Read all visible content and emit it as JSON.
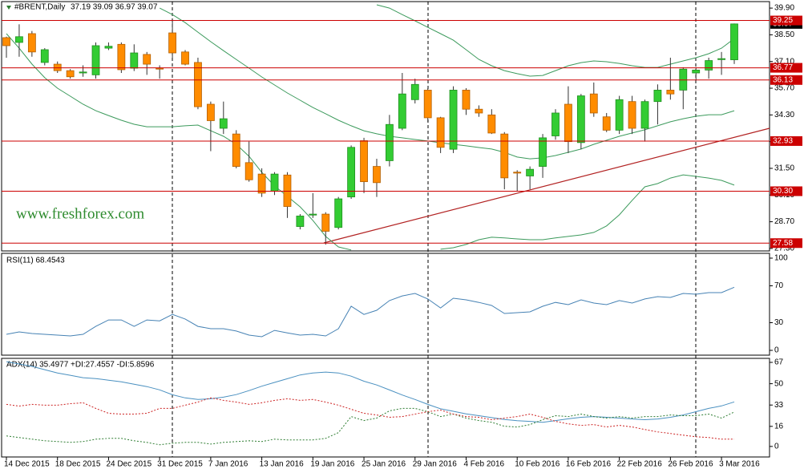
{
  "chart_data": [
    {
      "type": "candlestick",
      "title": "#BRENT,Daily",
      "subtitle": "37.19 39.09 36.97 39.07",
      "annotation": "www.freshforex.com",
      "categories": [
        "14 Dec 2015",
        null,
        null,
        null,
        "18 Dec 2015",
        null,
        null,
        null,
        "24 Dec 2015",
        null,
        null,
        null,
        "31 Dec 2015",
        null,
        null,
        null,
        "7 Jan 2016",
        null,
        null,
        null,
        "13 Jan 2016",
        null,
        null,
        null,
        "19 Jan 2016",
        null,
        null,
        null,
        "25 Jan 2016",
        null,
        null,
        null,
        "29 Jan 2016",
        null,
        null,
        null,
        "4 Feb 2016",
        null,
        null,
        null,
        "10 Feb 2016",
        null,
        null,
        null,
        "16 Feb 2016",
        null,
        null,
        null,
        "22 Feb 2016",
        null,
        null,
        null,
        "26 Feb 2016",
        null,
        null,
        null,
        "3 Mar 2016",
        null
      ],
      "open": [
        38.35,
        38.1,
        38.56,
        37.05,
        36.96,
        36.62,
        36.5,
        36.4,
        37.8,
        38.0,
        36.75,
        37.47,
        36.75,
        38.6,
        37.6,
        37.05,
        34.86,
        33.6,
        33.3,
        31.8,
        31.2,
        30.3,
        31.15,
        28.45,
        29.05,
        29.1,
        28.4,
        30.0,
        32.95,
        31.6,
        31.9,
        33.6,
        35.1,
        35.6,
        34.15,
        32.5,
        35.6,
        34.6,
        34.3,
        33.3,
        31.3,
        31.1,
        31.6,
        33.2,
        34.86,
        32.85,
        35.4,
        34.2,
        33.5,
        35.0,
        33.6,
        35.0,
        35.6,
        35.6,
        36.5,
        36.65,
        37.2,
        37.19
      ],
      "high": [
        38.4,
        39.05,
        38.7,
        37.8,
        37.1,
        36.7,
        36.9,
        38.1,
        38.1,
        38.1,
        38.0,
        37.6,
        36.9,
        39.2,
        37.7,
        37.3,
        35.0,
        35.0,
        33.5,
        32.9,
        31.5,
        31.3,
        31.3,
        29.1,
        30.2,
        29.2,
        30.0,
        32.7,
        33.1,
        32.0,
        34.3,
        36.5,
        36.2,
        35.7,
        34.2,
        35.8,
        35.7,
        34.8,
        34.6,
        33.4,
        31.4,
        31.6,
        33.3,
        34.6,
        35.8,
        35.4,
        36.0,
        34.4,
        35.3,
        35.3,
        35.1,
        35.9,
        37.3,
        36.8,
        36.8,
        37.3,
        37.6,
        39.09
      ],
      "low": [
        37.3,
        37.35,
        37.35,
        36.9,
        36.5,
        36.2,
        36.3,
        36.2,
        37.7,
        36.5,
        36.6,
        36.4,
        36.2,
        37.3,
        36.9,
        34.6,
        32.4,
        33.3,
        31.5,
        30.8,
        30.0,
        30.1,
        28.9,
        28.3,
        28.9,
        27.5,
        28.3,
        29.9,
        30.2,
        30.0,
        31.6,
        33.5,
        34.9,
        33.9,
        32.3,
        32.3,
        34.3,
        34.2,
        33.3,
        30.4,
        30.3,
        30.4,
        31.0,
        33.0,
        32.3,
        32.5,
        34.2,
        33.4,
        33.3,
        33.3,
        32.9,
        33.8,
        35.1,
        34.6,
        36.1,
        36.2,
        36.4,
        36.97
      ],
      "close": [
        37.93,
        38.4,
        37.6,
        37.72,
        36.62,
        36.3,
        36.55,
        37.93,
        37.9,
        36.67,
        37.55,
        36.96,
        36.7,
        37.55,
        36.96,
        34.73,
        34.0,
        34.1,
        31.6,
        30.9,
        30.2,
        31.2,
        29.5,
        29.0,
        29.1,
        28.2,
        29.9,
        32.6,
        30.8,
        30.75,
        33.8,
        35.4,
        35.9,
        34.15,
        32.6,
        35.6,
        34.6,
        34.4,
        33.35,
        31.0,
        31.25,
        31.45,
        33.1,
        34.4,
        32.9,
        35.3,
        34.4,
        33.5,
        35.1,
        33.6,
        35.0,
        35.6,
        35.4,
        36.7,
        36.65,
        37.15,
        37.25,
        39.07
      ],
      "up_color": "#33cc33",
      "down_color": "#ff8c00",
      "overlays": [
        {
          "color": "#3c9a5c",
          "values": [
            null,
            null,
            null,
            null,
            null,
            null,
            null,
            null,
            null,
            null,
            null,
            null,
            39.9,
            39.56,
            39.14,
            38.64,
            38.14,
            37.67,
            37.21,
            36.75,
            36.29,
            35.87,
            35.45,
            35.07,
            34.69,
            34.36,
            34.02,
            33.73,
            33.47,
            33.31,
            33.18,
            33.1,
            33.01,
            32.93,
            32.84,
            32.76,
            32.68,
            32.59,
            32.51,
            32.34,
            32.09,
            32.0,
            32.05,
            32.17,
            32.34,
            32.51,
            32.76,
            32.97,
            33.18,
            33.35,
            33.52,
            33.73,
            33.94,
            34.1,
            34.23,
            34.31,
            34.31,
            34.52
          ]
        },
        {
          "color": "#3c9a5c",
          "values": [
            38.56,
            37.8,
            36.96,
            36.25,
            35.7,
            35.28,
            34.86,
            34.52,
            34.27,
            34.02,
            33.81,
            33.68,
            33.68,
            33.68,
            33.73,
            33.77,
            33.47,
            33.18,
            32.76,
            32.13,
            31.29,
            30.58,
            30.03,
            29.48,
            28.77,
            27.93,
            27.38,
            27.22,
            null,
            null,
            null,
            null,
            null,
            null,
            27.26,
            27.34,
            27.51,
            27.76,
            27.89,
            27.85,
            27.8,
            27.76,
            27.76,
            27.85,
            27.93,
            28.01,
            28.14,
            28.48,
            29.06,
            29.82,
            30.53,
            30.7,
            30.99,
            31.16,
            31.08,
            30.99,
            30.87,
            30.62
          ]
        },
        {
          "color": "#3c9a5c",
          "values": [
            null,
            null,
            null,
            null,
            null,
            null,
            null,
            null,
            null,
            null,
            null,
            null,
            null,
            null,
            null,
            null,
            null,
            null,
            null,
            null,
            null,
            null,
            null,
            null,
            null,
            null,
            null,
            null,
            null,
            40.07,
            39.9,
            39.56,
            39.23,
            38.89,
            38.56,
            38.22,
            37.72,
            37.21,
            36.88,
            36.62,
            36.46,
            36.33,
            36.37,
            36.62,
            36.88,
            37.04,
            37.13,
            37.09,
            37.0,
            36.88,
            36.79,
            36.79,
            36.96,
            37.13,
            37.3,
            37.51,
            37.8,
            38.3
          ]
        }
      ],
      "hlines": [
        39.25,
        36.77,
        36.13,
        32.93,
        {
          "value": 30.3,
          "label": "30.30"
        },
        27.58
      ],
      "hline_color": "#cc0000",
      "last_price": 39.07,
      "ylim": [
        27.17,
        40.24
      ],
      "yticks": [
        {
          "value": 39.9,
          "label": "39.90"
        },
        {
          "value": 38.5,
          "label": "38.50"
        },
        {
          "value": 37.1,
          "label": "37.10"
        },
        {
          "value": 35.7,
          "label": "35.70"
        },
        {
          "value": 34.3,
          "label": "34.30"
        },
        {
          "value": 32.9,
          "label": "32.90"
        },
        {
          "value": 31.5,
          "label": "31.50"
        },
        {
          "value": 30.1,
          "label": "30.10"
        },
        {
          "value": 28.7,
          "label": "28.70"
        },
        {
          "value": 27.3,
          "label": "27.30"
        }
      ]
    },
    {
      "type": "line",
      "title": "RSI(11) 68.4543",
      "color": "#4682b4",
      "values": [
        17.4,
        20,
        18.3,
        17.4,
        16.5,
        15.7,
        17.4,
        26,
        33,
        33,
        26,
        33,
        32,
        39,
        34,
        26,
        23.5,
        23.5,
        21,
        16.5,
        14.8,
        21.7,
        19,
        16.5,
        17.4,
        15.7,
        23.5,
        47.8,
        39,
        43.5,
        54,
        59,
        61.7,
        55.7,
        46,
        56.5,
        54.8,
        52,
        48.7,
        40,
        40.9,
        41.7,
        47.8,
        52,
        49.6,
        54.8,
        51.3,
        49.6,
        54,
        51.3,
        55.7,
        58.3,
        57.4,
        61.7,
        60.9,
        62.6,
        62.6,
        68.4543
      ],
      "ylim": [
        -5.2,
        105.2
      ],
      "yticks": [
        100,
        70,
        30,
        0
      ]
    },
    {
      "type": "line",
      "title": "ADX(14) 35.4977 +DI:27.4557 -DI:5.8596",
      "series": [
        {
          "color": "#4a90c0",
          "dashed": false,
          "values": [
            67.6,
            65.7,
            63.8,
            61.2,
            58.6,
            56.7,
            54.8,
            54.1,
            52.8,
            51.5,
            49.6,
            47.7,
            45.1,
            41.2,
            38.7,
            37.4,
            38,
            39.3,
            41.3,
            44.5,
            48,
            51,
            54,
            57,
            58.6,
            59.3,
            58.6,
            56,
            52,
            49,
            45,
            41,
            37.4,
            33.5,
            30,
            28,
            26,
            24.5,
            23,
            21.5,
            20.5,
            20,
            19.3,
            20.6,
            22,
            23.2,
            23.8,
            23.2,
            22.6,
            21.9,
            21.3,
            21.9,
            23.2,
            25.1,
            27.7,
            30.3,
            32.3,
            35.4977
          ]
        },
        {
          "color": "#2e7d32",
          "dashed": true,
          "values": [
            8.4,
            7.1,
            5.8,
            4.5,
            3.9,
            3.2,
            3.9,
            5.8,
            6.4,
            6.4,
            4.5,
            3.2,
            1.3,
            2.6,
            3.2,
            3.2,
            1.9,
            3.2,
            3.9,
            4.5,
            3.9,
            5.8,
            5.2,
            5.2,
            5.2,
            6.4,
            11,
            23.8,
            20.6,
            22.6,
            28.4,
            30.3,
            30.3,
            27.7,
            23.8,
            25.8,
            22.6,
            20.6,
            19.3,
            16.1,
            15.5,
            17.4,
            21.3,
            24.5,
            23.8,
            25.8,
            23.8,
            22.6,
            23.8,
            22.6,
            23.8,
            23.8,
            25.1,
            24.5,
            24.5,
            25.8,
            22.6,
            27.4557
          ]
        },
        {
          "color": "#cc2222",
          "dashed": true,
          "values": [
            33.5,
            32.2,
            33.5,
            32.9,
            32.9,
            34.1,
            34.8,
            30.3,
            26.4,
            25.8,
            25.8,
            26.4,
            30.3,
            30.3,
            32.9,
            35.4,
            38.7,
            36.7,
            35.4,
            33.5,
            34.8,
            36.7,
            38,
            36.7,
            37.4,
            35.4,
            32.9,
            29.6,
            26.4,
            25.1,
            23.2,
            23.8,
            25.8,
            27.7,
            29,
            25.8,
            23.8,
            23.2,
            21.3,
            22.6,
            23.8,
            25.8,
            23.2,
            20,
            18,
            16.8,
            17.4,
            15.5,
            16.8,
            15.5,
            13.5,
            11.6,
            10.3,
            9,
            7.7,
            7.1,
            5.8,
            5.8596
          ]
        }
      ],
      "ylim": [
        -8.4,
        70.2
      ],
      "yticks": [
        67,
        50,
        33,
        16,
        0
      ]
    }
  ]
}
